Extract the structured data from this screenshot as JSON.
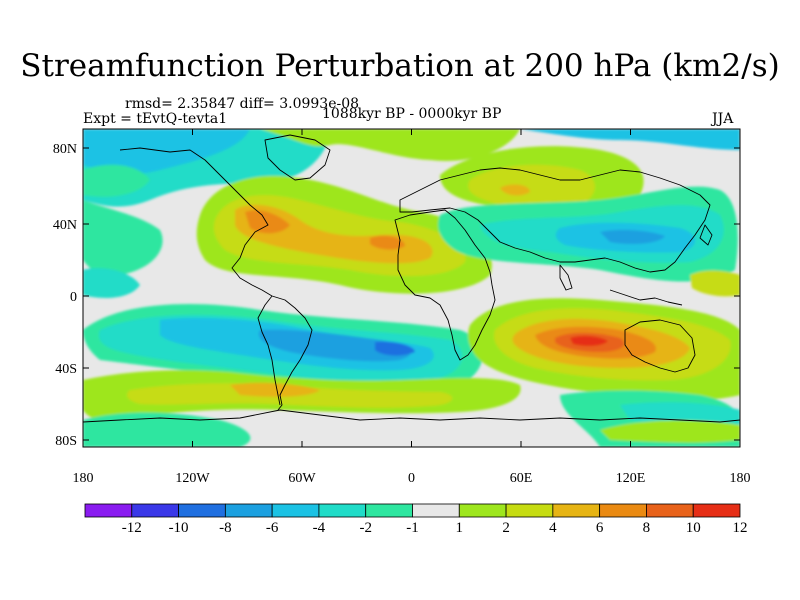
{
  "title": "Streamfunction Perturbation at 200 hPa (km2/s)",
  "stats": "rmsd= 2.35847 diff= 3.0993e-08",
  "experiment": "Expt = tEvtQ-tevta1",
  "period": "1088kyr BP - 0000kyr BP",
  "season": "JJA",
  "lat_labels": [
    "80N",
    "40N",
    "0",
    "40S",
    "80S"
  ],
  "lon_labels": [
    "180",
    "120W",
    "60W",
    "0",
    "60E",
    "120E",
    "180"
  ],
  "colorbar": {
    "labels": [
      "-12",
      "-10",
      "-8",
      "-6",
      "-4",
      "-2",
      "-1",
      "1",
      "2",
      "4",
      "6",
      "8",
      "10",
      "12"
    ],
    "colors": [
      "#8a1cf0",
      "#3a38e8",
      "#1f6fe0",
      "#1ba0e0",
      "#1bc2e4",
      "#20dcc8",
      "#2ee6a0",
      "#e8e8e8",
      "#9ee61e",
      "#c6dc12",
      "#e6b414",
      "#ea8a12",
      "#e8621a",
      "#e62e16"
    ]
  },
  "colors": {
    "background_field": "#e8e8e8",
    "coastline": "#000000"
  }
}
